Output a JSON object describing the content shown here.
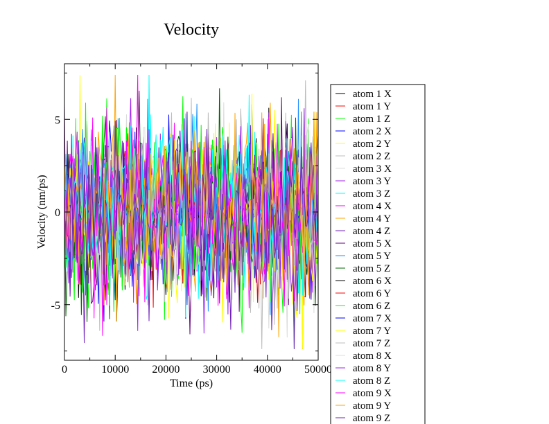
{
  "chart_data": {
    "type": "line",
    "title": "Velocity",
    "xlabel": "Time (ps)",
    "ylabel": "Velocity (nm/ps)",
    "xlim": [
      0,
      50000
    ],
    "ylim": [
      -8,
      8
    ],
    "xticks": [
      0,
      10000,
      20000,
      30000,
      40000,
      50000
    ],
    "xtick_labels": [
      "0",
      "10000",
      "20000",
      "30000",
      "40000",
      "50000"
    ],
    "yticks": [
      -5,
      0,
      5
    ],
    "ytick_labels": [
      "-5",
      "0",
      "5"
    ],
    "grid": false,
    "legend_position": "right",
    "series": [
      {
        "name": "atom 1 X",
        "color": "#000000",
        "amplitude": 3.0
      },
      {
        "name": "atom 1 Y",
        "color": "#ff0000",
        "amplitude": 3.0
      },
      {
        "name": "atom 1 Z",
        "color": "#00ff00",
        "amplitude": 3.0
      },
      {
        "name": "atom 2 X",
        "color": "#0000ff",
        "amplitude": 3.0
      },
      {
        "name": "atom 2 Y",
        "color": "#ffff00",
        "amplitude": 3.0
      },
      {
        "name": "atom 2 Z",
        "color": "#bcbcbc",
        "amplitude": 3.0
      },
      {
        "name": "atom 3 X",
        "color": "#dcdcdc",
        "amplitude": 3.0
      },
      {
        "name": "atom 3 Y",
        "color": "#a020f0",
        "amplitude": 3.0
      },
      {
        "name": "atom 3 Z",
        "color": "#00ffff",
        "amplitude": 3.0
      },
      {
        "name": "atom 4 X",
        "color": "#ff00ff",
        "amplitude": 3.0
      },
      {
        "name": "atom 4 Y",
        "color": "#ffa500",
        "amplitude": 3.0
      },
      {
        "name": "atom 4 Z",
        "color": "#7221bc",
        "amplitude": 3.0
      },
      {
        "name": "atom 5 X",
        "color": "#67007f",
        "amplitude": 3.0
      },
      {
        "name": "atom 5 Y",
        "color": "#1e90ff",
        "amplitude": 3.0
      },
      {
        "name": "atom 5 Z",
        "color": "#006400",
        "amplitude": 3.0
      },
      {
        "name": "atom 6 X",
        "color": "#000000",
        "amplitude": 0.4
      },
      {
        "name": "atom 6 Y",
        "color": "#ff0000",
        "amplitude": 0.4
      },
      {
        "name": "atom 6 Z",
        "color": "#00ff00",
        "amplitude": 3.0
      },
      {
        "name": "atom 7 X",
        "color": "#0000ff",
        "amplitude": 0.4
      },
      {
        "name": "atom 7 Y",
        "color": "#ffff00",
        "amplitude": 3.0
      },
      {
        "name": "atom 7 Z",
        "color": "#bcbcbc",
        "amplitude": 3.0
      },
      {
        "name": "atom 8 X",
        "color": "#dcdcdc",
        "amplitude": 3.0
      },
      {
        "name": "atom 8 Y",
        "color": "#a020f0",
        "amplitude": 3.0
      },
      {
        "name": "atom 8 Z",
        "color": "#00ffff",
        "amplitude": 3.0
      },
      {
        "name": "atom 9 X",
        "color": "#ff00ff",
        "amplitude": 3.0
      },
      {
        "name": "atom 9 Y",
        "color": "#ffa500",
        "amplitude": 3.0
      },
      {
        "name": "atom 9 Z",
        "color": "#7221bc",
        "amplitude": 3.0
      }
    ]
  }
}
